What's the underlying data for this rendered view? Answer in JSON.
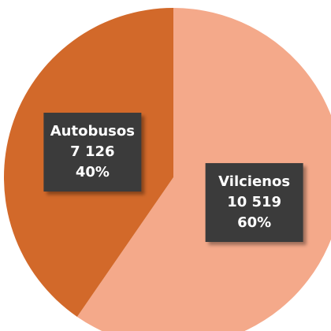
{
  "chart_data": {
    "type": "pie",
    "categories": [
      "Vilcienos",
      "Autobusos"
    ],
    "values": [
      10519,
      7126
    ],
    "value_labels": [
      "10 519",
      "7 126"
    ],
    "percent_labels": [
      "60%",
      "40%"
    ],
    "colors": [
      "#f4a98a",
      "#d2692a"
    ],
    "start_angle": 0,
    "direction": "clockwise"
  }
}
